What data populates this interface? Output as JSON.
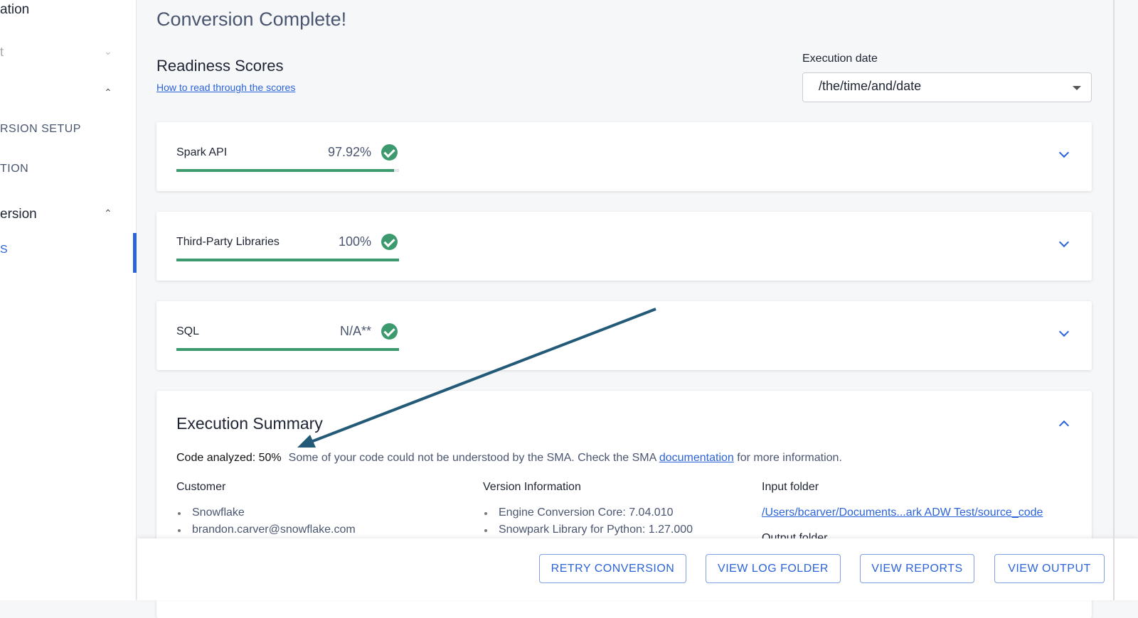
{
  "sidebar": {
    "items": [
      {
        "label": "ation"
      },
      {
        "label": "t"
      },
      {
        "label": ""
      },
      {
        "label": "RSION SETUP"
      },
      {
        "label": "TION"
      },
      {
        "label": "ersion"
      },
      {
        "label": "S"
      }
    ]
  },
  "header": {
    "title": "Conversion Complete!"
  },
  "readiness": {
    "title": "Readiness Scores",
    "help_link": "How to read through the scores"
  },
  "execution_date": {
    "label": "Execution date",
    "value": "/the/time/and/date"
  },
  "scores": [
    {
      "name": "Spark API",
      "value": "97.92%",
      "progress": 97.92
    },
    {
      "name": "Third-Party Libraries",
      "value": "100%",
      "progress": 100
    },
    {
      "name": "SQL",
      "value": "N/A**",
      "progress": 100
    }
  ],
  "summary": {
    "title": "Execution Summary",
    "code_analyzed": "Code analyzed: 50%",
    "message": "Some of your code could not be understood by the SMA. Check the SMA",
    "doc_link": "documentation",
    "message_end": "for more information.",
    "customer": {
      "title": "Customer",
      "items": [
        "Snowflake",
        "brandon.carver@snowflake.com"
      ]
    },
    "version": {
      "title": "Version Information",
      "items": [
        "Engine Conversion Core: 7.04.010",
        "Snowpark Library for Python: 1.27.000"
      ]
    },
    "input_folder": {
      "title": "Input folder",
      "path": "/Users/bcarver/Documents...ark ADW Test/source_code"
    },
    "output_folder": {
      "title": "Output folder"
    }
  },
  "footer": {
    "retry": "RETRY CONVERSION",
    "log": "VIEW LOG FOLDER",
    "reports": "VIEW REPORTS",
    "output": "VIEW OUTPUT"
  },
  "colors": {
    "accent": "#2b63d9",
    "success": "#3d9a6f",
    "arrow": "#235a78"
  }
}
